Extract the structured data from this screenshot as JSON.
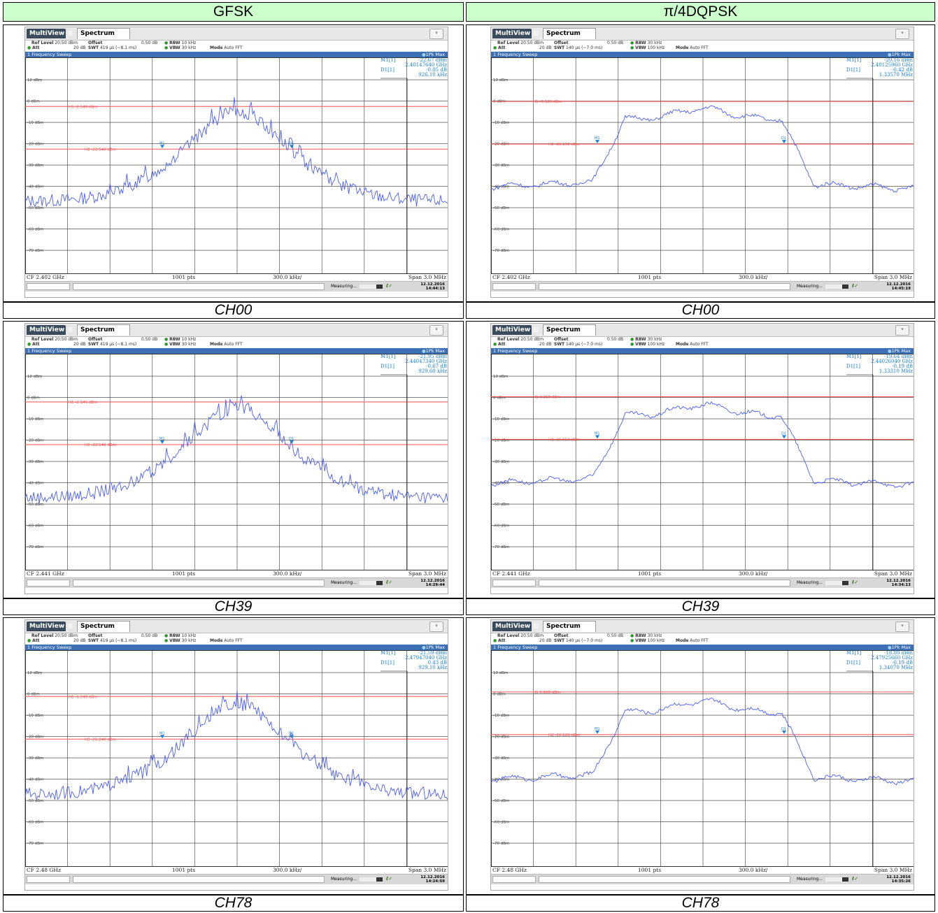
{
  "columns": [
    "GFSK",
    "π/4DQPSK"
  ],
  "colors": {
    "header_bg": "#ccffcc",
    "grid": "#333333",
    "trace": "#4a5cff",
    "line": "#ff5050",
    "marker": "#1a80e0",
    "sweep_bar": "#3c6fb3"
  },
  "common": {
    "tab_multiview": "MultiView",
    "tab_spectrum": "Spectrum",
    "ref_level_label": "Ref Level",
    "ref_level_value": "20.50 dBm",
    "offset_label": "Offset",
    "offset_value": "0.50 dB",
    "att_label": "Att",
    "att_value": "20 dB",
    "swt_label": "SWT",
    "rbw_label": "RBW",
    "vbw_label": "VBW",
    "mode_label": "Mode",
    "mode_value": "Auto FFT",
    "sweep_title": "1 Frequency Sweep",
    "trace_label": "1Pk Max",
    "m1_label": "M1[1]",
    "d1_label": "D1[1]",
    "points": "1001 pts",
    "per_div": "300.0 kHz/",
    "span": "Span 3.0 MHz",
    "measuring": "Measuring...",
    "y_ticks": [
      "10 dBm",
      "0 dBm",
      "-10 dBm",
      "-20 dBm",
      "-30 dBm",
      "-40 dBm",
      "-50 dBm",
      "-60 dBm",
      "-70 dBm"
    ]
  },
  "rows": [
    {
      "caption": "CH00",
      "panels": [
        {
          "mod": "gfsk",
          "swt": "419 µs (~8.1 ms)",
          "rbw": "10 kHz",
          "vbw": "30 kHz",
          "m1_level": "-22.67 dBm",
          "m1_freq": "2.40147640 GHz",
          "d1_level": "-0.05 dB",
          "d1_freq": "926.10 kHz",
          "h1": "H1 -2.540 dBm",
          "h2": "H2 -22.540 dBm",
          "h1_dbm": -2.54,
          "h2_dbm": -22.54,
          "cf": "CF 2.402 GHz",
          "date": "12.12.2016",
          "time": "14:44:13"
        },
        {
          "mod": "dqpsk",
          "swt": "140 µs (~7.0 ms)",
          "rbw": "30 kHz",
          "vbw": "100 kHz",
          "m1_level": "-20.16 dBm",
          "m1_freq": "2.40125960 GHz",
          "d1_level": "-0.42 dB",
          "d1_freq": "1.33570 MHz",
          "h1": "H1 -0.190 dBm",
          "h2": "H2 -20.190 dBm",
          "h1_dbm": -0.19,
          "h2_dbm": -20.19,
          "cf": "CF 2.402 GHz",
          "date": "12.12.2016",
          "time": "14:45:19"
        }
      ]
    },
    {
      "caption": "CH39",
      "panels": [
        {
          "mod": "gfsk",
          "swt": "419 µs (~8.1 ms)",
          "rbw": "10 kHz",
          "vbw": "30 kHz",
          "m1_level": "-21.95 dBm",
          "m1_freq": "2.44047340 GHz",
          "d1_level": "-0.67 dB",
          "d1_freq": "929.60 kHz",
          "h1": "H1 -2.140 dBm",
          "h2": "H2 -22.140 dBm",
          "h1_dbm": -2.14,
          "h2_dbm": -22.14,
          "cf": "CF 2.441 GHz",
          "date": "12.12.2016",
          "time": "14:29:44"
        },
        {
          "mod": "dqpsk",
          "swt": "140 µs (~7.0 ms)",
          "rbw": "30 kHz",
          "vbw": "100 kHz",
          "m1_level": "-19.64 dBm",
          "m1_freq": "2.44026040 GHz",
          "d1_level": "-0.19 dB",
          "d1_freq": "1.33310 MHz",
          "h1": "H1 0.350 dBm",
          "h2": "H2 -19.650 dBm",
          "h1_dbm": 0.35,
          "h2_dbm": -19.65,
          "cf": "CF 2.441 GHz",
          "date": "12.12.2016",
          "time": "14:34:13"
        }
      ]
    },
    {
      "caption": "CH78",
      "panels": [
        {
          "mod": "gfsk",
          "swt": "419 µs (~8.1 ms)",
          "rbw": "10 kHz",
          "vbw": "30 kHz",
          "m1_level": "-21.59 dBm",
          "m1_freq": "2.47947040 GHz",
          "d1_level": "0.43 dB",
          "d1_freq": "929.10 kHz",
          "h1": "H1 -1.240 dBm",
          "h2": "H2 -21.240 dBm",
          "h1_dbm": -1.24,
          "h2_dbm": -21.24,
          "cf": "CF 2.48 GHz",
          "date": "12.12.2016",
          "time": "14:24:59"
        },
        {
          "mod": "dqpsk",
          "swt": "140 µs (~7.0 ms)",
          "rbw": "30 kHz",
          "vbw": "100 kHz",
          "m1_level": "-18.80 dBm",
          "m1_freq": "2.47925660 GHz",
          "d1_level": "-0.19 dB",
          "d1_freq": "1.34070 MHz",
          "h1": "H1 0.880 dBm",
          "h2": "H2 -19.120 dBm",
          "h1_dbm": 0.88,
          "h2_dbm": -19.12,
          "cf": "CF 2.48 GHz",
          "date": "12.12.2016",
          "time": "14:35:26"
        }
      ]
    }
  ]
}
